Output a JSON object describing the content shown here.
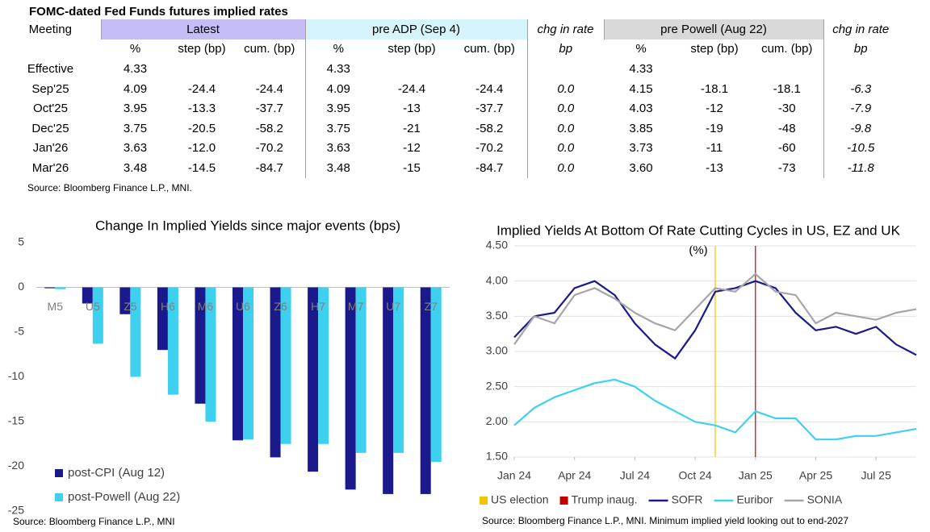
{
  "table": {
    "title": "FOMC-dated Fed Funds futures implied rates",
    "header_groups": [
      "Meeting",
      "Latest",
      "pre ADP (Sep 4)",
      "chg in rate",
      "pre Powell (Aug 22)",
      "chg in rate"
    ],
    "subheaders": [
      null,
      "%",
      "step (bp)",
      "cum. (bp)",
      "%",
      "step (bp)",
      "cum. (bp)",
      "bp",
      "%",
      "step (bp)",
      "cum. (bp)",
      "bp"
    ],
    "rows": [
      [
        "Effective",
        "4.33",
        null,
        null,
        "4.33",
        null,
        null,
        null,
        "4.33",
        null,
        null,
        null
      ],
      [
        "Sep'25",
        "4.09",
        "-24.4",
        "-24.4",
        "4.09",
        "-24.4",
        "-24.4",
        "0.0",
        "4.15",
        "-18.1",
        "-18.1",
        "-6.3"
      ],
      [
        "Oct'25",
        "3.95",
        "-13.3",
        "-37.7",
        "3.95",
        "-13",
        "-37.7",
        "0.0",
        "4.03",
        "-12",
        "-30",
        "-7.9"
      ],
      [
        "Dec'25",
        "3.75",
        "-20.5",
        "-58.2",
        "3.75",
        "-21",
        "-58.2",
        "0.0",
        "3.85",
        "-19",
        "-48",
        "-9.8"
      ],
      [
        "Jan'26",
        "3.63",
        "-12.0",
        "-70.2",
        "3.63",
        "-12",
        "-70.2",
        "0.0",
        "3.73",
        "-11",
        "-60",
        "-10.5"
      ],
      [
        "Mar'26",
        "3.48",
        "-14.5",
        "-84.7",
        "3.48",
        "-15",
        "-84.7",
        "0.0",
        "3.60",
        "-13",
        "-73",
        "-11.8"
      ]
    ],
    "source": "Source: Bloomberg Finance L.P., MNI."
  },
  "chart_data": [
    {
      "type": "bar",
      "title": "Change In Implied Yields since major events (bps)",
      "categories": [
        "M5",
        "U5",
        "Z5",
        "H6",
        "M6",
        "U6",
        "Z6",
        "H7",
        "M7",
        "U7",
        "Z7"
      ],
      "series": [
        {
          "name": "post-CPI (Aug 12)",
          "color": "#1a1a8c",
          "values": [
            -0.1,
            -1.8,
            -3,
            -7,
            -13,
            -17.1,
            -19,
            -20.6,
            -22.6,
            -23.1,
            -23.1
          ]
        },
        {
          "name": "post-Powell (Aug 22)",
          "color": "#3dd0ef",
          "values": [
            -0.2,
            -6.3,
            -10,
            -12,
            -15,
            -17,
            -17.5,
            -17.5,
            -18.5,
            -18.5,
            -19.5
          ]
        }
      ],
      "ylim": [
        -25,
        5
      ],
      "yticks": [
        5,
        0,
        -5,
        -10,
        -15,
        -20,
        -25
      ],
      "grid": false,
      "legend": "bottom-left",
      "source": "Source: Bloomberg Finance L.P., MNI"
    },
    {
      "type": "line",
      "title": "Implied Yields At Bottom Of Rate Cutting Cycles in US, EZ and UK",
      "subtitle": "(%)",
      "x": [
        "2024-01",
        "2024-02",
        "2024-03",
        "2024-04",
        "2024-05",
        "2024-06",
        "2024-07",
        "2024-08",
        "2024-09",
        "2024-10",
        "2024-11",
        "2024-12",
        "2025-01",
        "2025-02",
        "2025-03",
        "2025-04",
        "2025-05",
        "2025-06",
        "2025-07",
        "2025-08",
        "2025-09"
      ],
      "series": [
        {
          "name": "SOFR",
          "color": "#1a1a8c",
          "values": [
            3.2,
            3.5,
            3.55,
            3.9,
            4.0,
            3.8,
            3.4,
            3.1,
            2.9,
            3.3,
            3.85,
            3.9,
            4.0,
            3.9,
            3.55,
            3.3,
            3.35,
            3.25,
            3.35,
            3.1,
            2.95
          ]
        },
        {
          "name": "Euribor",
          "color": "#3dd0ef",
          "values": [
            1.95,
            2.2,
            2.35,
            2.45,
            2.55,
            2.6,
            2.5,
            2.3,
            2.15,
            2.0,
            1.95,
            1.85,
            2.15,
            2.05,
            2.05,
            1.75,
            1.75,
            1.8,
            1.8,
            1.85,
            1.9
          ]
        },
        {
          "name": "SONIA",
          "color": "#a6a6a6",
          "values": [
            3.1,
            3.5,
            3.4,
            3.8,
            3.9,
            3.75,
            3.55,
            3.4,
            3.3,
            3.6,
            3.9,
            3.85,
            4.1,
            3.85,
            3.8,
            3.4,
            3.55,
            3.5,
            3.45,
            3.55,
            3.6
          ]
        }
      ],
      "events": [
        {
          "name": "US election",
          "x": "2024-11",
          "color": "#f5c400"
        },
        {
          "name": "Trump inaug.",
          "x": "2025-01",
          "color": "#c00000"
        }
      ],
      "xlim": [
        "2024-01",
        "2025-09"
      ],
      "xticks": [
        {
          "value": "2024-01",
          "label": "Jan 24"
        },
        {
          "value": "2024-04",
          "label": "Apr 24"
        },
        {
          "value": "2024-07",
          "label": "Jul 24"
        },
        {
          "value": "2024-10",
          "label": "Oct 24"
        },
        {
          "value": "2025-01",
          "label": "Jan 25"
        },
        {
          "value": "2025-04",
          "label": "Apr 25"
        },
        {
          "value": "2025-07",
          "label": "Jul 25"
        }
      ],
      "ylim": [
        1.5,
        4.5
      ],
      "yticks": [
        {
          "value": 1.5,
          "label": "1.50"
        },
        {
          "value": 2,
          "label": "2.00"
        },
        {
          "value": 2.5,
          "label": "2.50"
        },
        {
          "value": 3,
          "label": "3.00"
        },
        {
          "value": 3.5,
          "label": "3.50"
        },
        {
          "value": 4,
          "label": "4.00"
        },
        {
          "value": 4.5,
          "label": "4.50"
        }
      ],
      "grid": true,
      "legend": "bottom",
      "source": "Source: Bloomberg Finance L.P., MNI. Minimum implied yield looking out to end-2027"
    }
  ]
}
